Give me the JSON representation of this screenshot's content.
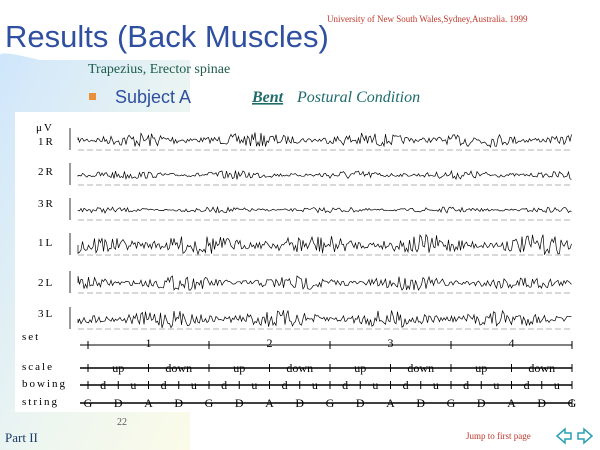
{
  "header": {
    "title": "Results (Back Muscles)",
    "affiliation": "University of  New South Wales,Sydney,Australia. 1999"
  },
  "subtitle": "Trapezius, Erector spinae",
  "bullet": {
    "subject": "Subject A",
    "condition_emphasis": "Bent",
    "condition": "Postural Condition"
  },
  "figure": {
    "unit": "μV",
    "channels": [
      "1R",
      "2R",
      "3R",
      "1L",
      "2L",
      "3L"
    ],
    "rows": [
      {
        "label": "set",
        "items": [
          "1",
          "2",
          "3",
          "4"
        ]
      },
      {
        "label": "scale",
        "items": [
          "up",
          "down",
          "up",
          "down",
          "up",
          "down",
          "up",
          "down"
        ]
      },
      {
        "label": "bowing",
        "items": [
          "d",
          "u",
          "d",
          "u",
          "d",
          "u",
          "d",
          "u",
          "d",
          "u",
          "d",
          "u",
          "d",
          "u",
          "d",
          "u"
        ]
      },
      {
        "label": "string",
        "items": [
          "G",
          "D",
          "A",
          "D",
          "G",
          "D",
          "A",
          "D",
          "G",
          "D",
          "A",
          "D",
          "G",
          "D",
          "A",
          "D",
          "G"
        ]
      }
    ]
  },
  "footer": {
    "page": "22",
    "section": "Part II",
    "link": "Jump to first page"
  }
}
